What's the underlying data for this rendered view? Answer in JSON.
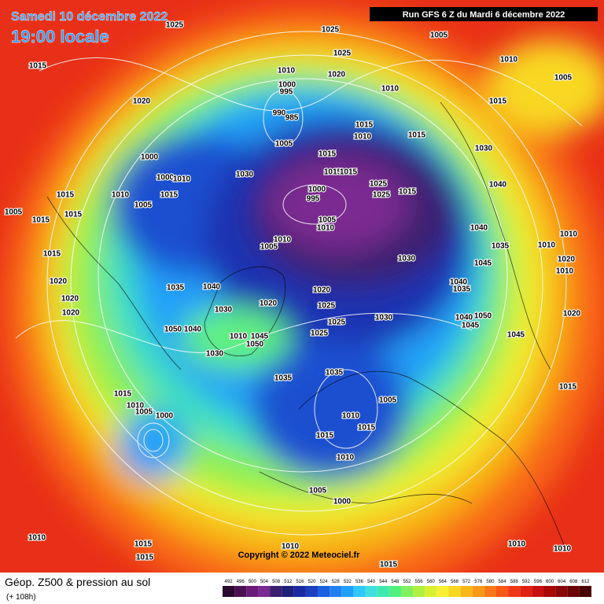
{
  "header": {
    "date": "Samedi 10 décembre 2022",
    "time": "19:00 locale",
    "run": "Run GFS 6 Z du Mardi 6 décembre 2022"
  },
  "footer": {
    "copyright": "Copyright © 2022 Meteociel.fr",
    "title": "Géop. Z500 & pression au sol",
    "lead": "(+ 108h)"
  },
  "legend": {
    "values": [
      492,
      496,
      500,
      504,
      508,
      512,
      516,
      520,
      524,
      528,
      532,
      536,
      540,
      544,
      548,
      552,
      556,
      560,
      564,
      568,
      572,
      576,
      580,
      584,
      588,
      592,
      596,
      600,
      604,
      608,
      612
    ],
    "colors": [
      "#2a0a2e",
      "#4b1050",
      "#6a1a78",
      "#7a2a90",
      "#3a2070",
      "#20207a",
      "#1a2aa0",
      "#1a40c0",
      "#1a60e0",
      "#2080f0",
      "#20a0f8",
      "#30c8f8",
      "#40e0e0",
      "#40e8b0",
      "#50f080",
      "#80f060",
      "#b0f040",
      "#d8f030",
      "#f8f030",
      "#f8d820",
      "#f8b818",
      "#f89818",
      "#f87818",
      "#f85818",
      "#f03818",
      "#e02010",
      "#c81010",
      "#a80808",
      "#880808",
      "#680404",
      "#480202"
    ]
  },
  "isobar_labels": [
    1025,
    1025,
    1005,
    1025,
    1010,
    1015,
    1010,
    1020,
    1005,
    1000,
    995,
    1010,
    1020,
    1015,
    990,
    985,
    1015,
    1010,
    1015,
    1005,
    1030,
    1015,
    1000,
    1000,
    1010,
    1030,
    1015,
    1015,
    1025,
    1025,
    1015,
    1040,
    1015,
    1010,
    1015,
    1000,
    995,
    1005,
    1015,
    1005,
    1005,
    1010,
    1015,
    1040,
    1010,
    1010,
    1005,
    1010,
    1035,
    1030,
    1015,
    1045,
    1020,
    1010,
    1020,
    1035,
    1040,
    1040,
    1035,
    1020,
    1020,
    1020,
    1030,
    1025,
    1020,
    1030,
    1040,
    1050,
    1025,
    1045,
    1020,
    1050,
    1040,
    1045,
    1025,
    1010,
    1045,
    1050,
    1030,
    1035,
    1035,
    1015,
    1015,
    1005,
    1010,
    1005,
    1000,
    1010,
    1015,
    1015,
    1010,
    1005,
    1000,
    1015,
    1015,
    1010,
    1010,
    1010,
    1015,
    1010
  ]
}
